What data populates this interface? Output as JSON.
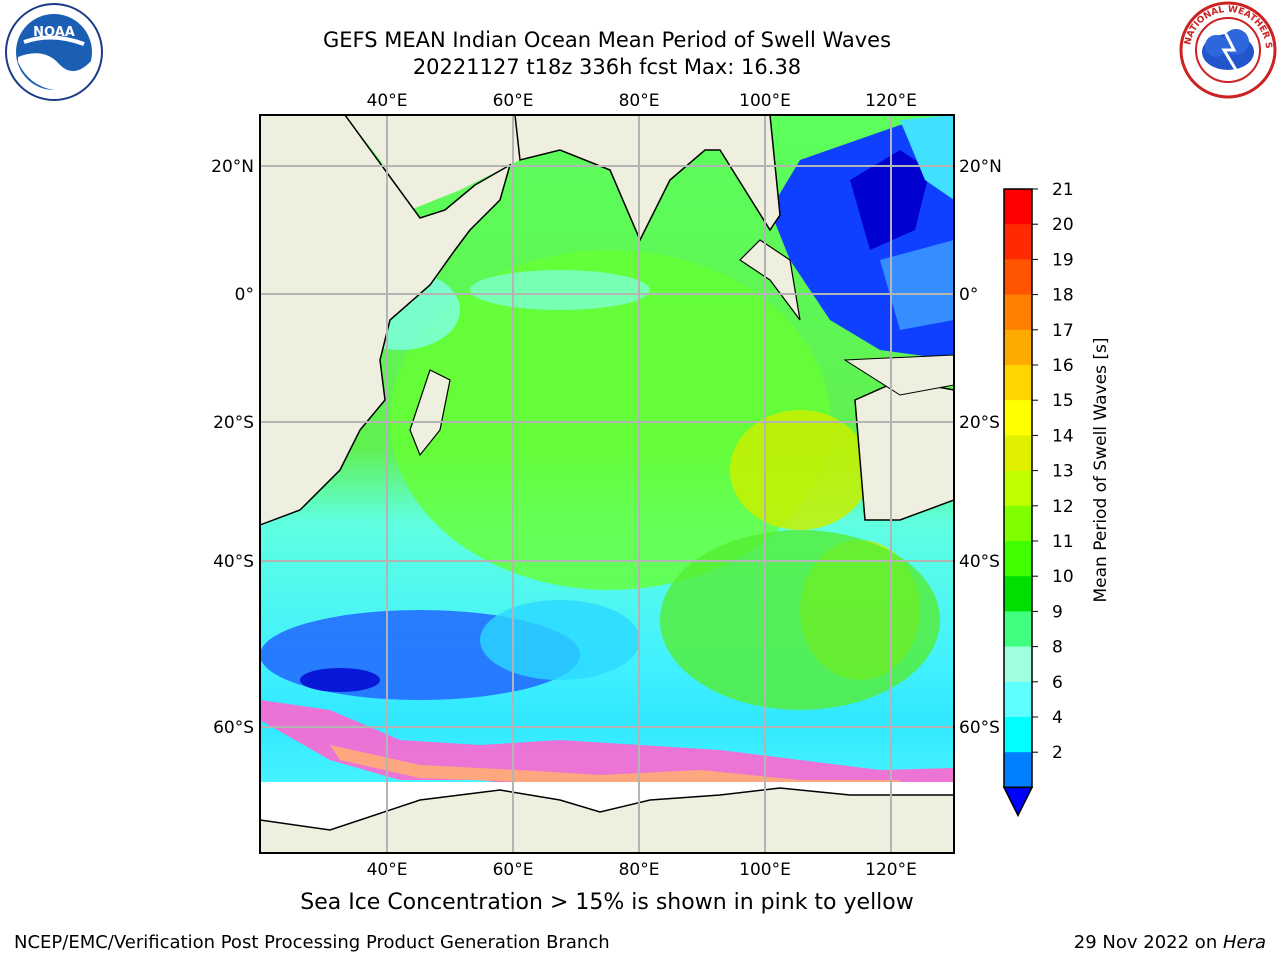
{
  "title": {
    "line1": "GEFS MEAN Indian Ocean Mean Period of Swell Waves",
    "line2": "20221127 t18z 336h fcst   Max: 16.38"
  },
  "map": {
    "region": "Indian Ocean",
    "lon_range": [
      20,
      130
    ],
    "lat_range": [
      -72,
      28
    ],
    "lon_ticks": [
      "40°E",
      "60°E",
      "80°E",
      "100°E",
      "120°E"
    ],
    "lat_ticks": [
      "20°N",
      "0°",
      "20°S",
      "40°S",
      "60°S"
    ],
    "grid": true
  },
  "colorbar": {
    "label": "Mean Period of Swell Waves [s]",
    "ticks": [
      "21",
      "20",
      "19",
      "18",
      "17",
      "16",
      "15",
      "14",
      "13",
      "12",
      "11",
      "10",
      "9",
      "8",
      "6",
      "4",
      "2"
    ],
    "colors": [
      "#ff0000",
      "#ff2a00",
      "#ff5500",
      "#ff7f00",
      "#ffaa00",
      "#ffd400",
      "#ffff00",
      "#e0f000",
      "#c0ff00",
      "#80ff00",
      "#40ff00",
      "#00e000",
      "#40ff80",
      "#a0ffe0",
      "#60ffff",
      "#00ffff",
      "#0080ff"
    ],
    "extend_color": "#0000ff"
  },
  "caption": "Sea Ice Concentration > 15% is shown in pink to yellow",
  "credits": {
    "left": "NCEP/EMC/Verification Post Processing Product Generation Branch",
    "right_date": "29 Nov 2022 on ",
    "right_host": "Hera"
  },
  "logos": {
    "left_text": "NOAA",
    "right_text": "NATIONAL WEATHER SERVICE"
  }
}
